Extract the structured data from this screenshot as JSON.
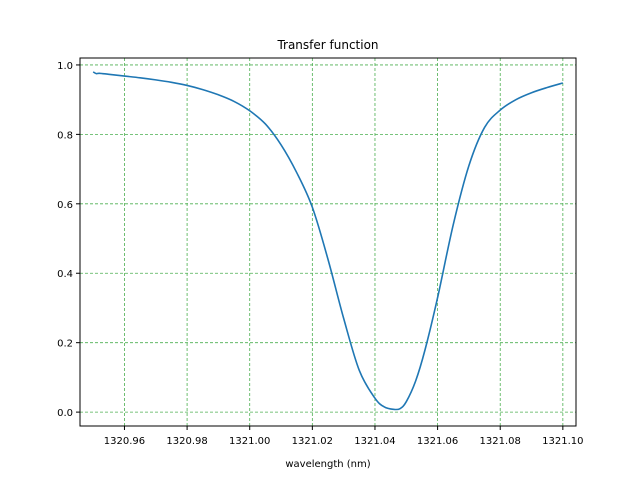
{
  "chart_data": {
    "type": "line",
    "title": "Transfer function",
    "xlabel": "wavelength (nm)",
    "ylabel": "",
    "xlim": [
      1320.9458,
      1321.1042
    ],
    "ylim": [
      -0.04,
      1.02
    ],
    "grid": true,
    "grid_color": "#4caf50",
    "line_color": "#1f77b4",
    "x_ticks": [
      1320.96,
      1320.98,
      1321.0,
      1321.02,
      1321.04,
      1321.06,
      1321.08,
      1321.1
    ],
    "x_tick_labels": [
      "1320.96",
      "1320.98",
      "1321.00",
      "1321.02",
      "1321.04",
      "1321.06",
      "1321.08",
      "1321.10"
    ],
    "y_ticks": [
      0.0,
      0.2,
      0.4,
      0.6,
      0.8,
      1.0
    ],
    "y_tick_labels": [
      "0.0",
      "0.2",
      "0.4",
      "0.6",
      "0.8",
      "1.0"
    ],
    "series": [
      {
        "x": [
          1320.95,
          1320.951,
          1320.952,
          1320.955,
          1320.96,
          1320.965,
          1320.97,
          1320.975,
          1320.98,
          1320.985,
          1320.99,
          1320.995,
          1321.0,
          1321.005,
          1321.01,
          1321.015,
          1321.02,
          1321.025,
          1321.03,
          1321.035,
          1321.04,
          1321.043,
          1321.046,
          1321.048,
          1321.05,
          1321.053,
          1321.056,
          1321.06,
          1321.065,
          1321.07,
          1321.075,
          1321.08,
          1321.085,
          1321.09,
          1321.095,
          1321.1
        ],
        "y": [
          0.98,
          0.975,
          0.976,
          0.973,
          0.968,
          0.963,
          0.957,
          0.95,
          0.941,
          0.929,
          0.914,
          0.895,
          0.868,
          0.83,
          0.77,
          0.69,
          0.59,
          0.44,
          0.27,
          0.12,
          0.04,
          0.015,
          0.008,
          0.01,
          0.03,
          0.09,
          0.18,
          0.33,
          0.54,
          0.71,
          0.82,
          0.87,
          0.9,
          0.92,
          0.935,
          0.948
        ]
      }
    ]
  }
}
